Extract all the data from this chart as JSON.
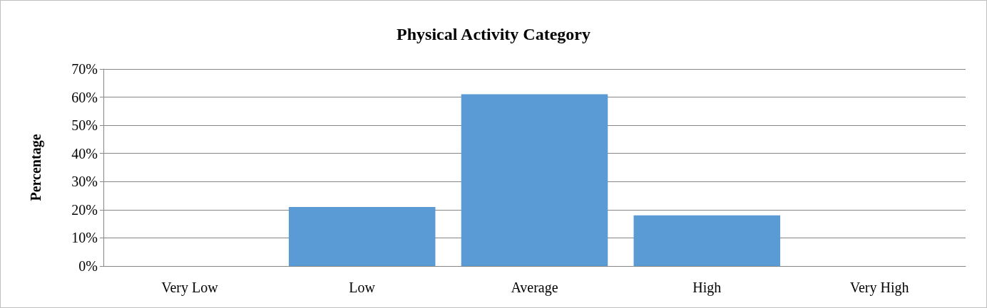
{
  "chart_data": {
    "type": "bar",
    "title": "Physical Activity Category",
    "ylabel": "Percentage",
    "categories": [
      "Very Low",
      "Low",
      "Average",
      "High",
      "Very High"
    ],
    "values": [
      0,
      21,
      61,
      18,
      0
    ],
    "color": "#5b9bd5",
    "ylim": [
      0,
      70
    ],
    "yticks": [
      {
        "value": 0,
        "label": "0%"
      },
      {
        "value": 10,
        "label": "10%"
      },
      {
        "value": 20,
        "label": "20%"
      },
      {
        "value": 30,
        "label": "30%"
      },
      {
        "value": 40,
        "label": "40%"
      },
      {
        "value": 50,
        "label": "50%"
      },
      {
        "value": 60,
        "label": "60%"
      },
      {
        "value": 70,
        "label": "70%"
      }
    ],
    "grid": "y"
  }
}
